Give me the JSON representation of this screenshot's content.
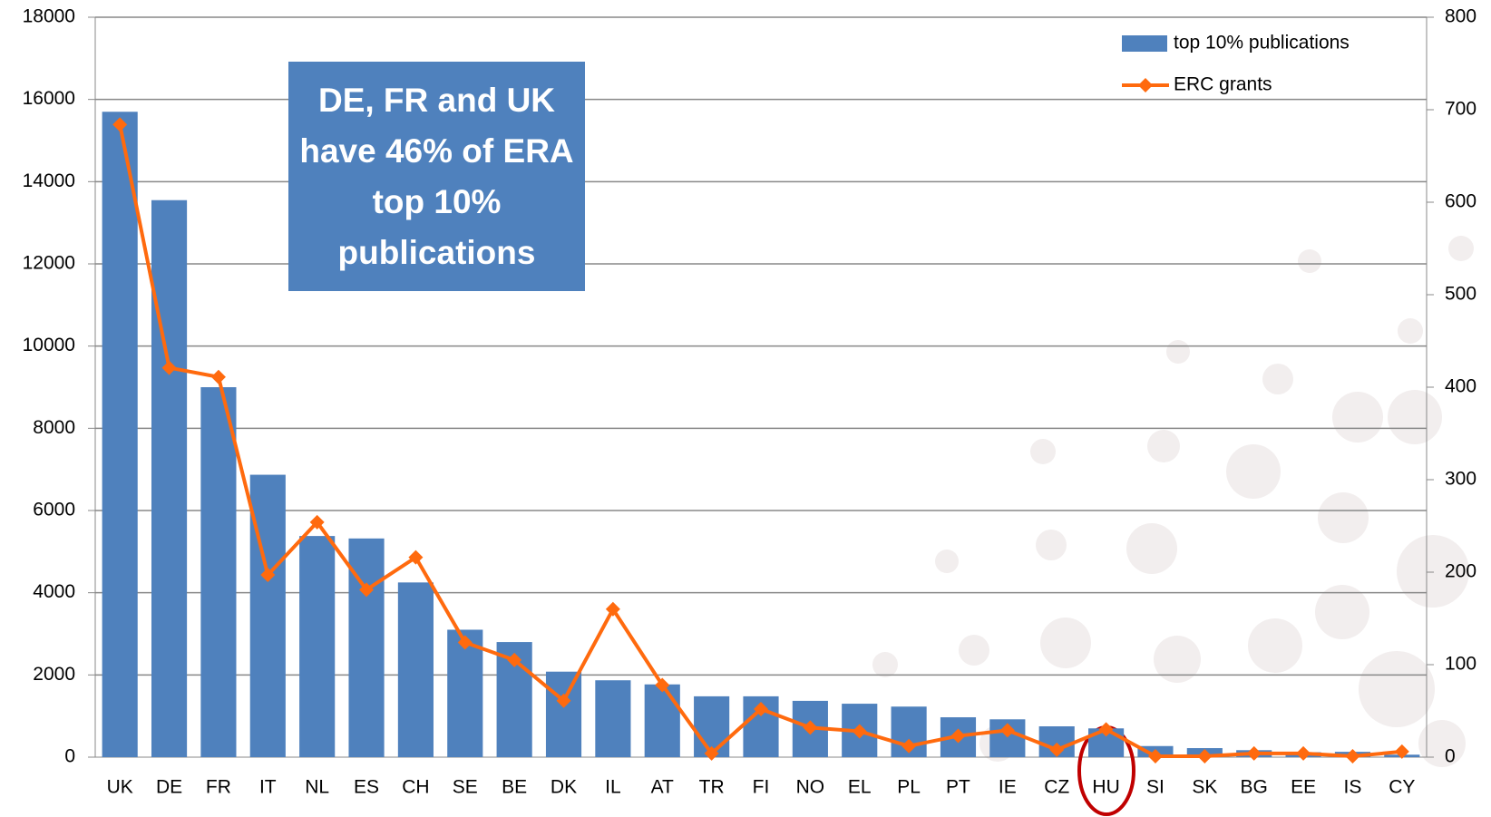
{
  "chart_data": {
    "type": "bar",
    "annotation": "DE, FR and UK have 46% of ERA top 10% publications",
    "categories": [
      "UK",
      "DE",
      "FR",
      "IT",
      "NL",
      "ES",
      "CH",
      "SE",
      "BE",
      "DK",
      "IL",
      "AT",
      "TR",
      "FI",
      "NO",
      "EL",
      "PL",
      "PT",
      "IE",
      "CZ",
      "HU",
      "SI",
      "SK",
      "BG",
      "EE",
      "IS",
      "CY"
    ],
    "series": [
      {
        "name": "top 10% publications",
        "type": "bar",
        "color": "#4f81bd",
        "values": [
          15700,
          13550,
          9000,
          6870,
          5380,
          5320,
          4250,
          3100,
          2800,
          2080,
          1870,
          1770,
          1480,
          1480,
          1370,
          1300,
          1230,
          970,
          920,
          750,
          700,
          270,
          220,
          170,
          120,
          130,
          60
        ]
      },
      {
        "name": "ERC grants",
        "type": "line",
        "axis": "y2",
        "color": "#ff6a0e",
        "values": [
          684,
          421,
          411,
          197,
          254,
          181,
          216,
          124,
          105,
          61,
          160,
          78,
          4,
          52,
          32,
          28,
          12,
          23,
          29,
          8,
          30,
          1,
          1,
          4,
          4,
          1,
          6
        ]
      }
    ],
    "ylim": [
      0,
      18000
    ],
    "yticks": [
      0,
      2000,
      4000,
      6000,
      8000,
      10000,
      12000,
      14000,
      16000,
      18000
    ],
    "y2lim": [
      0,
      800
    ],
    "y2ticks": [
      0,
      100,
      200,
      300,
      400,
      500,
      600,
      700,
      800
    ],
    "grid": true,
    "legend": "top-right"
  }
}
